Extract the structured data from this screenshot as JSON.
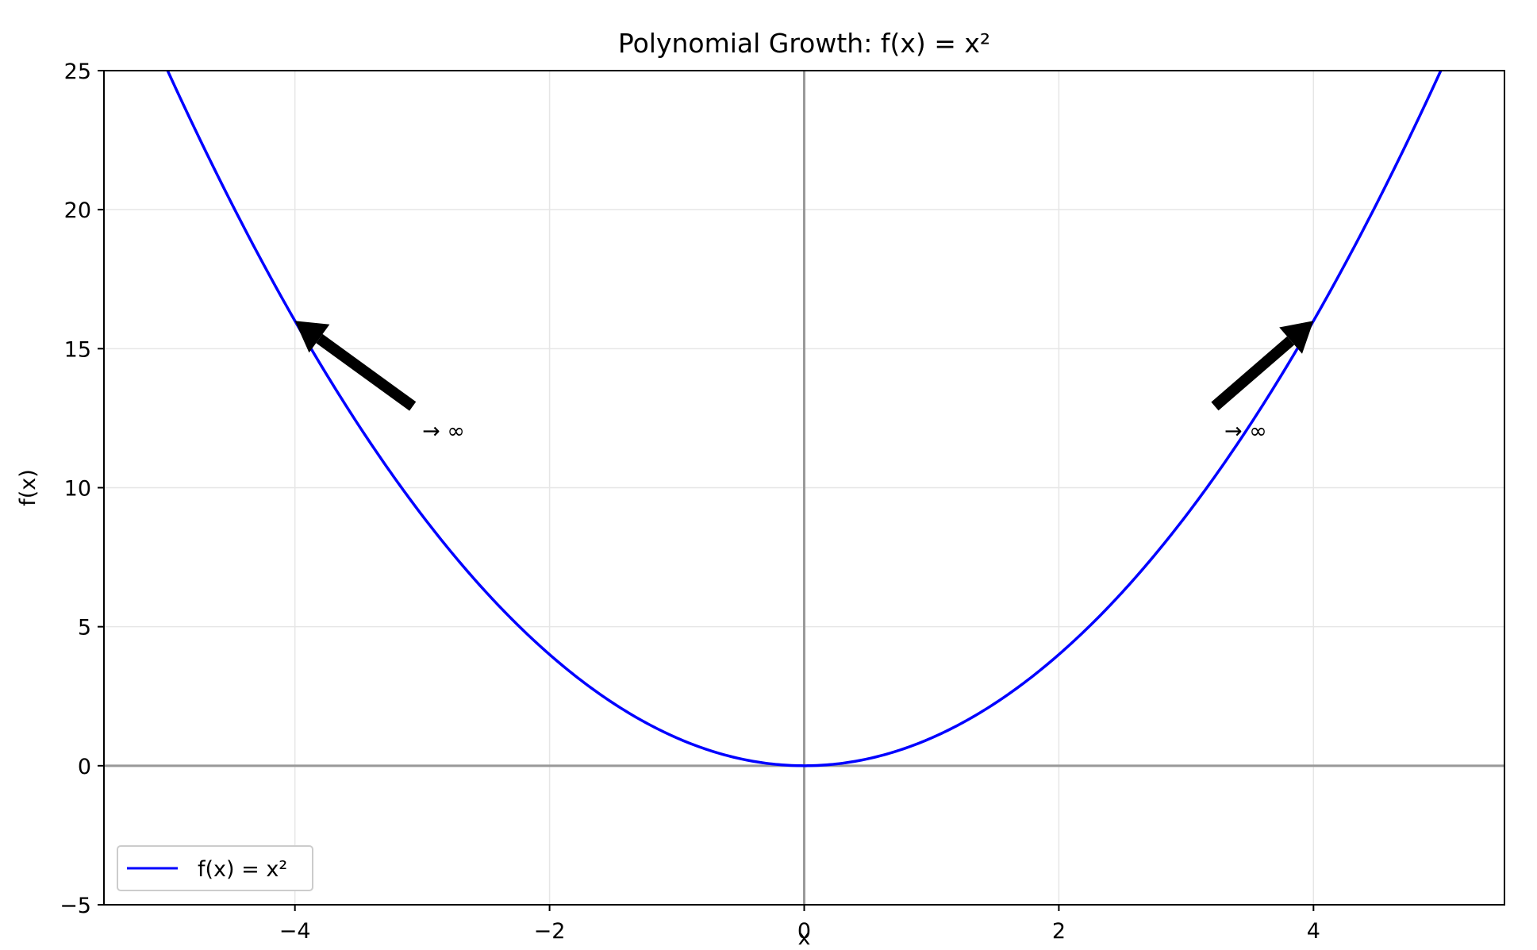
{
  "chart_data": {
    "type": "line",
    "title": "Polynomial Growth: f(x) = x²",
    "xlabel": "x",
    "ylabel": "f(x)",
    "xlim": [
      -5.5,
      5.5
    ],
    "ylim": [
      -5,
      25
    ],
    "x_ticks": [
      -4,
      -2,
      0,
      2,
      4
    ],
    "y_ticks": [
      -5,
      0,
      5,
      10,
      15,
      20,
      25
    ],
    "x_tick_labels": [
      "−4",
      "−2",
      "0",
      "2",
      "4"
    ],
    "y_tick_labels": [
      "−5",
      "0",
      "5",
      "10",
      "15",
      "20",
      "25"
    ],
    "grid": true,
    "legend_placement": "lower-left",
    "series": [
      {
        "name": "f(x) = x²",
        "color": "#0000ff",
        "function": "x^2",
        "x_range": [
          -5,
          5
        ],
        "x": [
          -5,
          -4.5,
          -4,
          -3.5,
          -3,
          -2.5,
          -2,
          -1.5,
          -1,
          -0.5,
          0,
          0.5,
          1,
          1.5,
          2,
          2.5,
          3,
          3.5,
          4,
          4.5,
          5
        ],
        "y": [
          25,
          20.25,
          16,
          12.25,
          9,
          6.25,
          4,
          2.25,
          1,
          0.25,
          0,
          0.25,
          1,
          2.25,
          4,
          6.25,
          9,
          12.25,
          16,
          20.25,
          25
        ]
      }
    ],
    "reference_lines": {
      "color": "#999999"
    },
    "annotations": [
      {
        "text": "→ ∞",
        "text_x": -3,
        "text_y": 12.3,
        "point_x": -4,
        "point_y": 16
      },
      {
        "text": "→ ∞",
        "text_x": 3.3,
        "text_y": 12.3,
        "point_x": 4,
        "point_y": 16
      }
    ]
  }
}
